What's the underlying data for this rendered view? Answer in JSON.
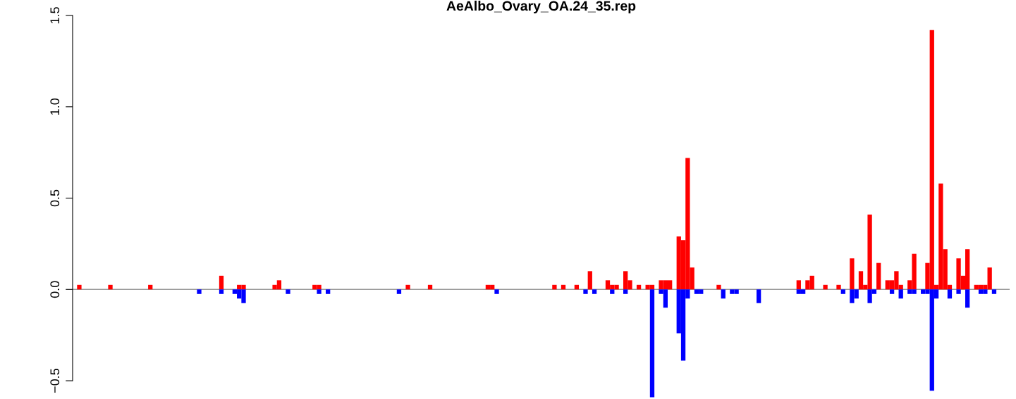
{
  "chart_data": {
    "type": "bar",
    "title": "AeAlbo_Ovary_OA.24_35.rep",
    "categories": [
      null,
      null,
      null,
      null,
      null,
      null,
      null,
      null,
      null,
      null,
      null,
      null,
      null,
      null,
      null,
      null,
      null,
      null,
      null,
      null,
      null,
      null,
      null,
      null,
      null,
      null,
      null,
      null,
      null,
      null,
      null,
      null,
      null,
      null,
      null,
      null,
      null,
      null,
      null,
      null,
      null,
      null,
      null,
      null,
      null,
      null,
      null,
      null,
      null,
      null,
      null,
      null,
      null,
      null,
      null,
      null,
      null,
      null,
      null,
      null,
      null,
      null,
      null,
      null,
      null,
      null,
      null,
      null,
      null,
      null,
      null,
      null,
      null,
      null,
      null,
      null,
      null,
      null,
      null,
      null,
      null,
      null,
      null,
      null,
      null,
      null,
      null,
      null,
      null,
      null,
      null,
      null,
      null,
      null,
      null,
      null,
      null,
      null,
      null,
      null,
      null,
      null,
      null,
      null,
      null,
      null,
      null,
      null,
      null,
      null,
      null,
      null,
      null,
      null,
      null,
      null,
      null,
      null,
      null,
      null,
      null,
      null,
      null,
      null,
      null,
      null,
      null,
      null,
      null,
      null,
      null,
      null,
      null,
      null,
      null,
      null,
      null,
      null,
      null,
      null,
      null,
      null,
      null,
      null,
      null,
      null,
      null,
      null,
      null,
      null,
      null,
      null,
      null,
      null,
      null,
      null,
      null,
      null,
      null,
      null,
      null,
      null,
      null,
      null,
      null,
      null,
      null,
      null,
      null,
      null,
      null,
      null,
      null,
      null,
      null,
      null,
      null,
      null,
      null,
      null,
      null,
      null,
      null,
      null,
      null,
      null,
      null,
      null,
      null,
      null,
      null,
      null,
      null,
      null,
      null,
      null,
      null,
      null,
      null,
      null,
      null,
      null,
      null,
      null,
      null,
      null,
      null,
      null,
      null,
      null,
      null
    ],
    "series": [
      {
        "color": "#ff0000",
        "values": [
          null,
          0.025,
          null,
          null,
          null,
          null,
          null,
          null,
          0.025,
          null,
          null,
          null,
          null,
          null,
          null,
          null,
          null,
          0.025,
          null,
          null,
          null,
          null,
          null,
          null,
          null,
          null,
          null,
          null,
          null,
          null,
          null,
          null,
          null,
          0.075,
          null,
          null,
          null,
          0.025,
          0.025,
          null,
          null,
          null,
          null,
          null,
          null,
          0.025,
          0.05,
          null,
          null,
          null,
          null,
          null,
          null,
          null,
          0.025,
          0.025,
          null,
          null,
          null,
          null,
          null,
          null,
          null,
          null,
          null,
          null,
          null,
          null,
          null,
          null,
          null,
          null,
          null,
          null,
          null,
          0.025,
          null,
          null,
          null,
          null,
          0.025,
          null,
          null,
          null,
          null,
          null,
          null,
          null,
          null,
          null,
          null,
          null,
          null,
          0.025,
          0.025,
          null,
          null,
          null,
          null,
          null,
          null,
          null,
          null,
          null,
          null,
          null,
          null,
          null,
          0.025,
          null,
          0.025,
          null,
          null,
          0.025,
          null,
          null,
          0.1,
          null,
          null,
          null,
          0.05,
          0.025,
          0.025,
          null,
          0.1,
          0.05,
          null,
          0.025,
          null,
          0.025,
          0.025,
          null,
          0.05,
          0.05,
          0.05,
          null,
          0.29,
          0.27,
          0.72,
          0.12,
          null,
          null,
          null,
          null,
          null,
          0.025,
          null,
          null,
          null,
          null,
          null,
          null,
          null,
          null,
          null,
          null,
          null,
          null,
          null,
          null,
          null,
          null,
          null,
          0.05,
          null,
          0.05,
          0.075,
          null,
          null,
          0.025,
          null,
          null,
          0.025,
          null,
          null,
          0.17,
          null,
          0.1,
          0.025,
          0.41,
          null,
          0.145,
          null,
          0.05,
          0.05,
          0.1,
          0.025,
          null,
          0.05,
          0.195,
          null,
          null,
          0.145,
          1.42,
          0.025,
          0.58,
          0.22,
          0.025,
          null,
          0.17,
          0.075,
          0.22,
          null,
          0.025,
          0.025,
          0.025,
          0.12,
          null,
          null,
          null,
          null
        ]
      },
      {
        "color": "#0000ff",
        "values": [
          null,
          null,
          null,
          null,
          null,
          null,
          null,
          null,
          null,
          null,
          null,
          null,
          null,
          null,
          null,
          null,
          null,
          null,
          null,
          null,
          null,
          null,
          null,
          null,
          null,
          null,
          null,
          null,
          -0.025,
          null,
          null,
          null,
          null,
          -0.025,
          null,
          null,
          -0.025,
          -0.05,
          -0.075,
          null,
          null,
          null,
          null,
          null,
          null,
          null,
          null,
          null,
          -0.025,
          null,
          null,
          null,
          null,
          null,
          null,
          -0.025,
          null,
          -0.025,
          null,
          null,
          null,
          null,
          null,
          null,
          null,
          null,
          null,
          null,
          null,
          null,
          null,
          null,
          null,
          -0.025,
          null,
          null,
          null,
          null,
          null,
          null,
          null,
          null,
          null,
          null,
          null,
          null,
          null,
          null,
          null,
          null,
          null,
          null,
          null,
          null,
          null,
          -0.025,
          null,
          null,
          null,
          null,
          null,
          null,
          null,
          null,
          null,
          null,
          null,
          null,
          null,
          null,
          null,
          null,
          null,
          null,
          null,
          -0.025,
          null,
          -0.025,
          null,
          null,
          null,
          -0.025,
          null,
          null,
          -0.025,
          null,
          null,
          null,
          null,
          null,
          -0.59,
          null,
          -0.025,
          -0.1,
          null,
          null,
          -0.24,
          -0.39,
          -0.05,
          null,
          -0.025,
          -0.025,
          null,
          null,
          null,
          null,
          -0.05,
          null,
          -0.025,
          -0.025,
          null,
          null,
          null,
          null,
          -0.075,
          null,
          null,
          null,
          null,
          null,
          null,
          null,
          null,
          -0.025,
          -0.025,
          null,
          null,
          null,
          null,
          null,
          null,
          null,
          null,
          -0.025,
          null,
          -0.075,
          -0.05,
          null,
          null,
          -0.075,
          -0.025,
          null,
          null,
          null,
          -0.025,
          null,
          -0.05,
          null,
          -0.025,
          -0.025,
          null,
          -0.025,
          -0.025,
          -0.555,
          -0.05,
          null,
          null,
          -0.05,
          null,
          -0.025,
          null,
          -0.1,
          null,
          null,
          -0.025,
          -0.025,
          null,
          -0.025,
          null,
          null,
          null
        ]
      }
    ],
    "ylim": [
      -0.6,
      1.5
    ],
    "yticks": [
      {
        "value": -0.5,
        "label": "−0.5"
      },
      {
        "value": 0,
        "label": "0.0"
      },
      {
        "value": 0.5,
        "label": "0.5"
      },
      {
        "value": 1,
        "label": "1.0"
      },
      {
        "value": 1.5,
        "label": "1.5"
      }
    ],
    "ref_lines": [
      {
        "axis": "y",
        "value": 0,
        "color": "#999999"
      }
    ],
    "tick_labels": "y",
    "grid": false
  }
}
